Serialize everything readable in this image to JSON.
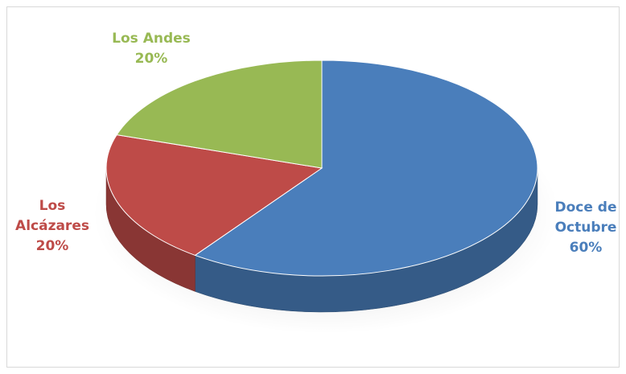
{
  "chart_data": {
    "type": "pie",
    "categories": [
      "Doce de Octubre",
      "Los Alcázares",
      "Los Andes"
    ],
    "values": [
      60,
      20,
      20
    ],
    "value_labels": [
      "60%",
      "20%",
      "20%"
    ],
    "colors": [
      "#4a7ebb",
      "#be4b48",
      "#98b954"
    ]
  }
}
